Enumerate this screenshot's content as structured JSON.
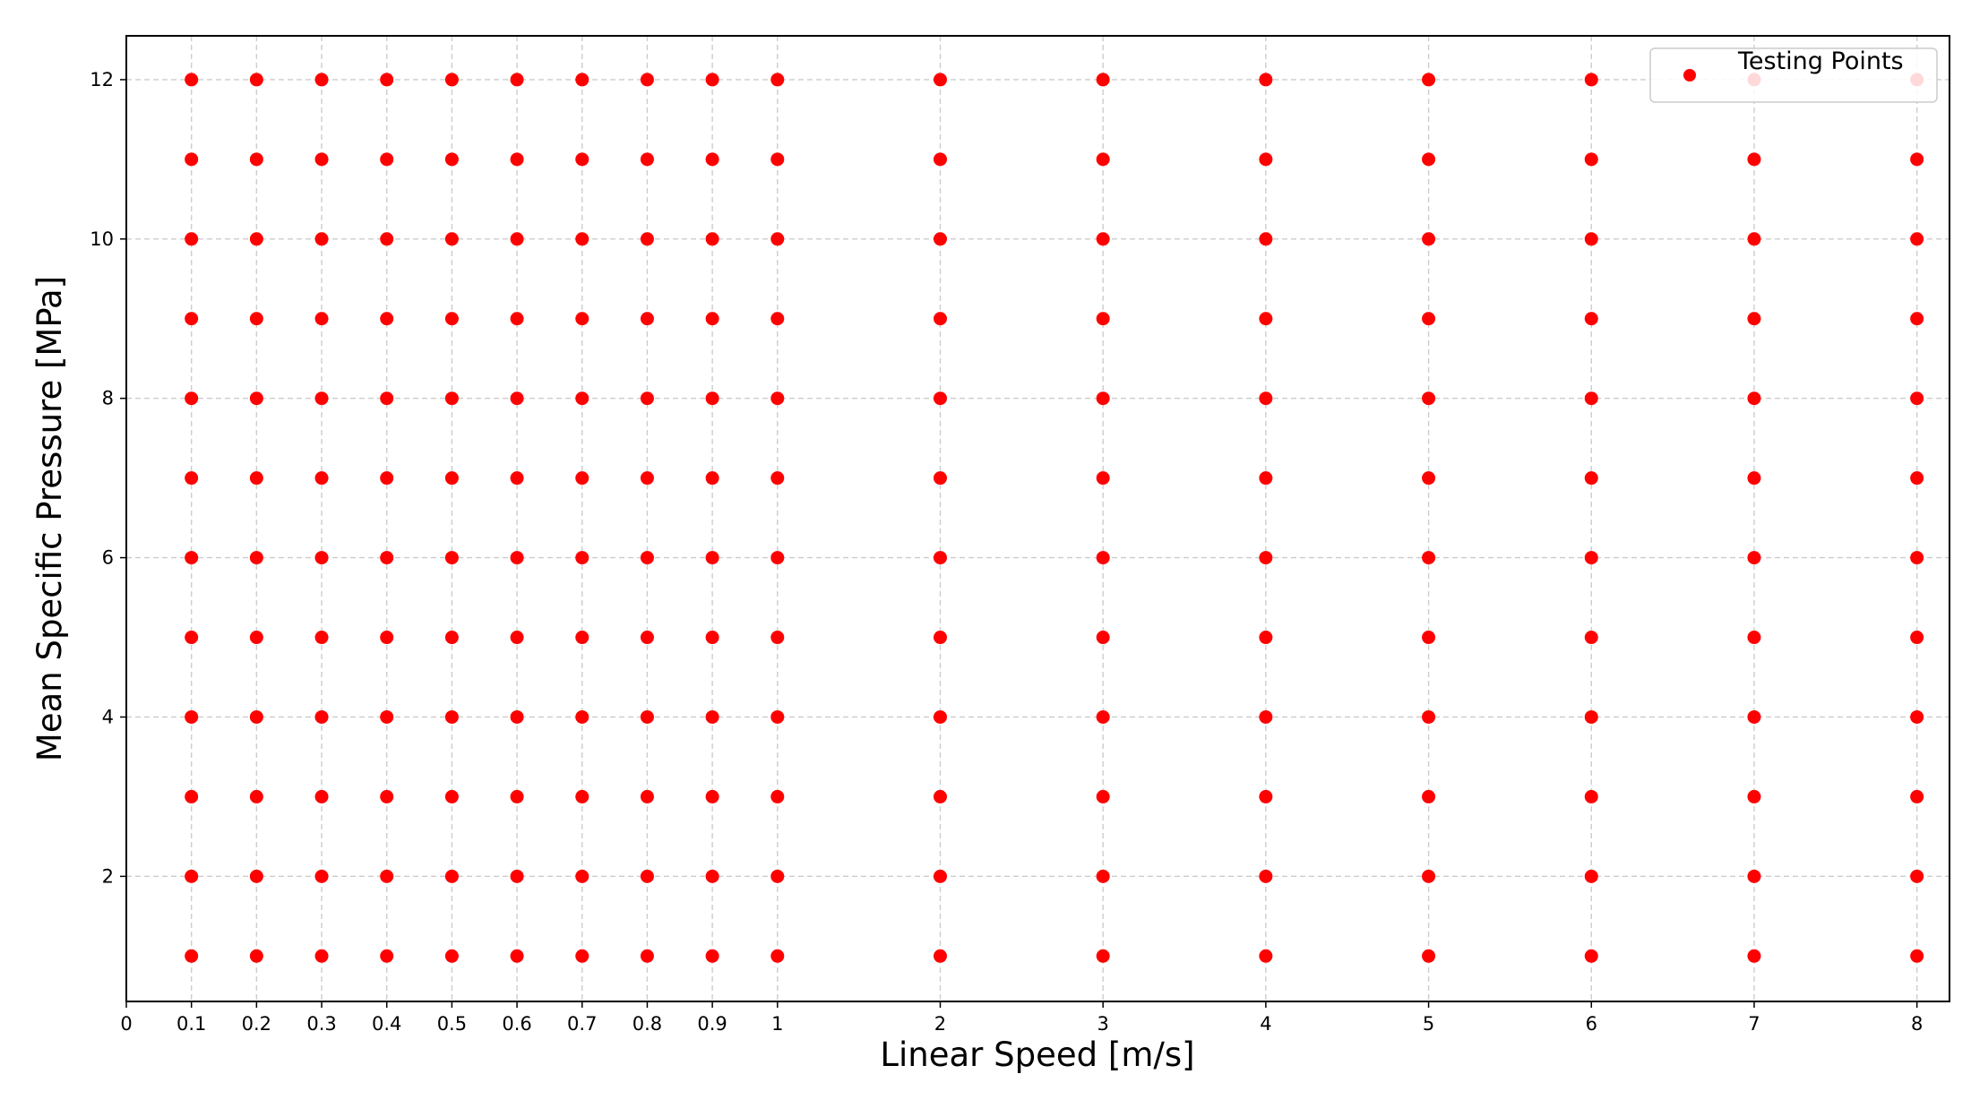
{
  "chart_data": {
    "type": "scatter",
    "x_label": "Linear Speed [m/s]",
    "y_label": "Mean Specific Pressure [MPa]",
    "series": [
      {
        "name": "Testing Points",
        "color": "#ff0000",
        "x": [
          0.1,
          0.1,
          0.1,
          0.1,
          0.1,
          0.1,
          0.1,
          0.1,
          0.1,
          0.1,
          0.1,
          0.1,
          0.2,
          0.2,
          0.2,
          0.2,
          0.2,
          0.2,
          0.2,
          0.2,
          0.2,
          0.2,
          0.2,
          0.2,
          0.3,
          0.3,
          0.3,
          0.3,
          0.3,
          0.3,
          0.3,
          0.3,
          0.3,
          0.3,
          0.3,
          0.3,
          0.4,
          0.4,
          0.4,
          0.4,
          0.4,
          0.4,
          0.4,
          0.4,
          0.4,
          0.4,
          0.4,
          0.4,
          0.5,
          0.5,
          0.5,
          0.5,
          0.5,
          0.5,
          0.5,
          0.5,
          0.5,
          0.5,
          0.5,
          0.5,
          0.6,
          0.6,
          0.6,
          0.6,
          0.6,
          0.6,
          0.6,
          0.6,
          0.6,
          0.6,
          0.6,
          0.6,
          0.7,
          0.7,
          0.7,
          0.7,
          0.7,
          0.7,
          0.7,
          0.7,
          0.7,
          0.7,
          0.7,
          0.7,
          0.8,
          0.8,
          0.8,
          0.8,
          0.8,
          0.8,
          0.8,
          0.8,
          0.8,
          0.8,
          0.8,
          0.8,
          0.9,
          0.9,
          0.9,
          0.9,
          0.9,
          0.9,
          0.9,
          0.9,
          0.9,
          0.9,
          0.9,
          0.9,
          1,
          1,
          1,
          1,
          1,
          1,
          1,
          1,
          1,
          1,
          1,
          1,
          2,
          2,
          2,
          2,
          2,
          2,
          2,
          2,
          2,
          2,
          2,
          2,
          3,
          3,
          3,
          3,
          3,
          3,
          3,
          3,
          3,
          3,
          3,
          3,
          4,
          4,
          4,
          4,
          4,
          4,
          4,
          4,
          4,
          4,
          4,
          4,
          5,
          5,
          5,
          5,
          5,
          5,
          5,
          5,
          5,
          5,
          5,
          5,
          6,
          6,
          6,
          6,
          6,
          6,
          6,
          6,
          6,
          6,
          6,
          6,
          7,
          7,
          7,
          7,
          7,
          7,
          7,
          7,
          7,
          7,
          7,
          7,
          8,
          8,
          8,
          8,
          8,
          8,
          8,
          8,
          8,
          8,
          8,
          8
        ],
        "values": [
          1,
          2,
          3,
          4,
          5,
          6,
          7,
          8,
          9,
          10,
          11,
          12,
          1,
          2,
          3,
          4,
          5,
          6,
          7,
          8,
          9,
          10,
          11,
          12,
          1,
          2,
          3,
          4,
          5,
          6,
          7,
          8,
          9,
          10,
          11,
          12,
          1,
          2,
          3,
          4,
          5,
          6,
          7,
          8,
          9,
          10,
          11,
          12,
          1,
          2,
          3,
          4,
          5,
          6,
          7,
          8,
          9,
          10,
          11,
          12,
          1,
          2,
          3,
          4,
          5,
          6,
          7,
          8,
          9,
          10,
          11,
          12,
          1,
          2,
          3,
          4,
          5,
          6,
          7,
          8,
          9,
          10,
          11,
          12,
          1,
          2,
          3,
          4,
          5,
          6,
          7,
          8,
          9,
          10,
          11,
          12,
          1,
          2,
          3,
          4,
          5,
          6,
          7,
          8,
          9,
          10,
          11,
          12,
          1,
          2,
          3,
          4,
          5,
          6,
          7,
          8,
          9,
          10,
          11,
          12,
          1,
          2,
          3,
          4,
          5,
          6,
          7,
          8,
          9,
          10,
          11,
          12,
          1,
          2,
          3,
          4,
          5,
          6,
          7,
          8,
          9,
          10,
          11,
          12,
          1,
          2,
          3,
          4,
          5,
          6,
          7,
          8,
          9,
          10,
          11,
          12,
          1,
          2,
          3,
          4,
          5,
          6,
          7,
          8,
          9,
          10,
          11,
          12,
          1,
          2,
          3,
          4,
          5,
          6,
          7,
          8,
          9,
          10,
          11,
          12,
          1,
          2,
          3,
          4,
          5,
          6,
          7,
          8,
          9,
          10,
          11,
          12,
          1,
          2,
          3,
          4,
          5,
          6,
          7,
          8,
          9,
          10,
          11,
          12
        ]
      }
    ],
    "xlim": [
      0,
      8.2
    ],
    "xticks": [
      0,
      0.1,
      0.2,
      0.3,
      0.4,
      0.5,
      0.6,
      0.7,
      0.8,
      0.9,
      1,
      2,
      3,
      4,
      5,
      6,
      7,
      8
    ],
    "ylim": [
      0.43,
      12.55
    ],
    "yticks": [
      2,
      4,
      6,
      8,
      10,
      12
    ],
    "grid": true,
    "legend": "upper right"
  }
}
